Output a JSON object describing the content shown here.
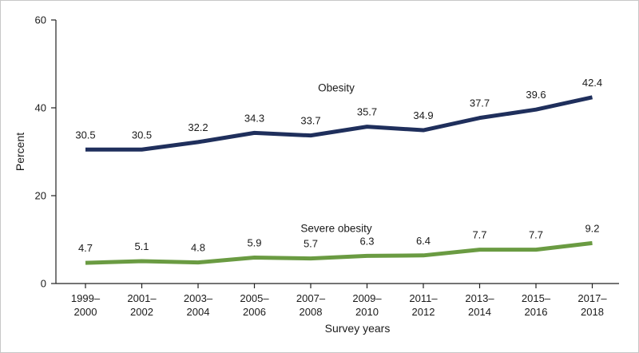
{
  "chart_data": {
    "type": "line",
    "title": "",
    "xlabel": "Survey years",
    "ylabel": "Percent",
    "ylim": [
      0,
      60
    ],
    "yticks": [
      "0",
      "20",
      "40",
      "60"
    ],
    "categories": [
      [
        "1999–",
        "2000"
      ],
      [
        "2001–",
        "2002"
      ],
      [
        "2003–",
        "2004"
      ],
      [
        "2005–",
        "2006"
      ],
      [
        "2007–",
        "2008"
      ],
      [
        "2009–",
        "2010"
      ],
      [
        "2011–",
        "2012"
      ],
      [
        "2013–",
        "2014"
      ],
      [
        "2015–",
        "2016"
      ],
      [
        "2017–",
        "2018"
      ]
    ],
    "series": [
      {
        "name": "Obesity",
        "color": "#1f2f5c",
        "values": [
          30.5,
          30.5,
          32.2,
          34.3,
          33.7,
          35.7,
          34.9,
          37.7,
          39.6,
          42.4
        ],
        "labels": [
          "30.5",
          "30.5",
          "32.2",
          "34.3",
          "33.7",
          "35.7",
          "34.9",
          "37.7",
          "39.6",
          "42.4"
        ]
      },
      {
        "name": "Severe obesity",
        "color": "#6a9b42",
        "values": [
          4.7,
          5.1,
          4.8,
          5.9,
          5.7,
          6.3,
          6.4,
          7.7,
          7.7,
          9.2
        ],
        "labels": [
          "4.7",
          "5.1",
          "4.8",
          "5.9",
          "5.7",
          "6.3",
          "6.4",
          "7.7",
          "7.7",
          "9.2"
        ]
      }
    ],
    "grid": false,
    "legend": "inline labels above lines"
  }
}
